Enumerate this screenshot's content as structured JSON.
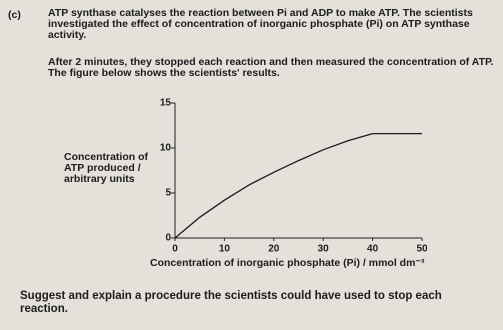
{
  "question": {
    "label": "(c)",
    "intro": "ATP synthase catalyses the reaction between Pi and ADP to make ATP. The scientists investigated the effect of concentration of inorganic phosphate (Pi) on ATP synthase activity.",
    "method": "After 2 minutes, they stopped each reaction and then measured the concentration of ATP. The figure below shows the scientists' results.",
    "prompt": "Suggest and explain a procedure the scientists could have used to stop each reaction."
  },
  "chart_data": {
    "type": "line",
    "x_label": "Concentration of inorganic phosphate (Pi) / mmol dm⁻³",
    "y_label": "Concentration of ATP produced / arbitrary units",
    "x": [
      0,
      5,
      10,
      15,
      20,
      25,
      30,
      35,
      40,
      50
    ],
    "values": [
      0,
      2.3,
      4.2,
      5.9,
      7.3,
      8.6,
      9.8,
      10.8,
      11.6,
      11.6
    ],
    "color": "#1a1a1a",
    "xlim": [
      0,
      50
    ],
    "xticks": [
      0,
      10,
      20,
      30,
      40,
      50
    ],
    "ylim": [
      0,
      15
    ],
    "yticks": [
      0,
      5,
      10,
      15
    ]
  }
}
